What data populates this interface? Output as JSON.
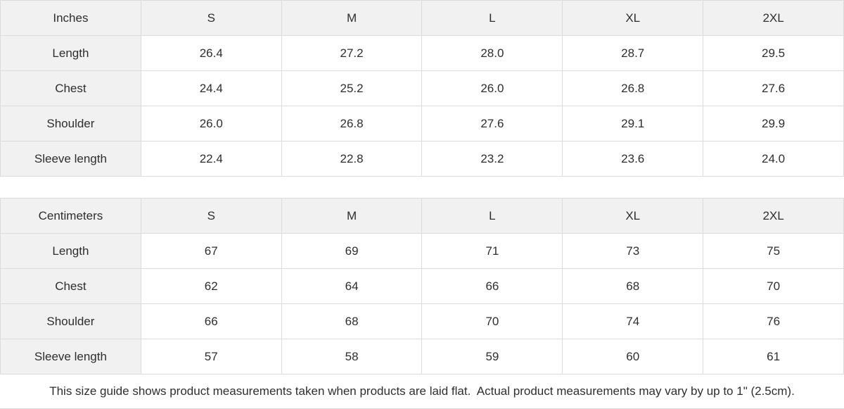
{
  "colors": {
    "header_bg": "#f1f1f1",
    "border": "#dcdcdc",
    "text": "#2e2e2e",
    "cell_bg": "#ffffff"
  },
  "inches_table": {
    "unit_label": "Inches",
    "sizes": [
      "S",
      "M",
      "L",
      "XL",
      "2XL"
    ],
    "rows": [
      {
        "label": "Length",
        "values": [
          "26.4",
          "27.2",
          "28.0",
          "28.7",
          "29.5"
        ]
      },
      {
        "label": "Chest",
        "values": [
          "24.4",
          "25.2",
          "26.0",
          "26.8",
          "27.6"
        ]
      },
      {
        "label": "Shoulder",
        "values": [
          "26.0",
          "26.8",
          "27.6",
          "29.1",
          "29.9"
        ]
      },
      {
        "label": "Sleeve length",
        "values": [
          "22.4",
          "22.8",
          "23.2",
          "23.6",
          "24.0"
        ]
      }
    ]
  },
  "centimeters_table": {
    "unit_label": "Centimeters",
    "sizes": [
      "S",
      "M",
      "L",
      "XL",
      "2XL"
    ],
    "rows": [
      {
        "label": "Length",
        "values": [
          "67",
          "69",
          "71",
          "73",
          "75"
        ]
      },
      {
        "label": "Chest",
        "values": [
          "62",
          "64",
          "66",
          "68",
          "70"
        ]
      },
      {
        "label": "Shoulder",
        "values": [
          "66",
          "68",
          "70",
          "74",
          "76"
        ]
      },
      {
        "label": "Sleeve length",
        "values": [
          "57",
          "58",
          "59",
          "60",
          "61"
        ]
      }
    ]
  },
  "footer": {
    "note": "This size guide shows product measurements taken when products are laid flat.  Actual product measurements may vary by up to 1\" (2.5cm)."
  }
}
